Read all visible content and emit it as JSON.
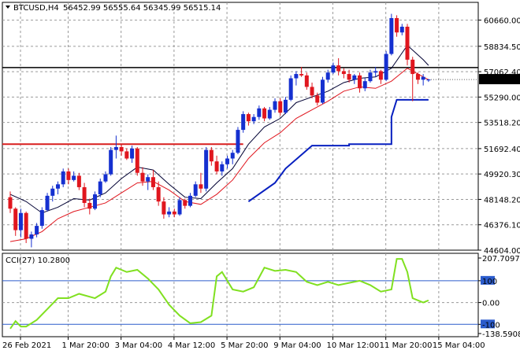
{
  "header": {
    "symbol": "BTCUSD,H4",
    "ohlc": "56452.99 56555.64 56345.99 56515.14"
  },
  "colors": {
    "bull": "#1530d0",
    "bear": "#e0161e",
    "ma_fast": "#000033",
    "ma_slow": "#e0161e",
    "support": "#0820c0",
    "resistance": "#d81e1e",
    "horizontal": "#000000",
    "cci": "#80e020",
    "cci_level": "#2c5ccc",
    "grid": "#9a9a9a",
    "current_price_bg": "#000000",
    "current_price_fg": "#ffffff"
  },
  "chart_data": [
    {
      "type": "candlestick",
      "title": "BTCUSD,H4",
      "y_ticks": [
        "60660.00",
        "58834.50",
        "57062.40",
        "55290.00",
        "53518.20",
        "51692.40",
        "49920.30",
        "48148.20",
        "46376.10",
        "44604.00"
      ],
      "y_tick_values": [
        60660.0,
        58834.5,
        57062.4,
        55290.0,
        53518.2,
        51692.4,
        49920.3,
        48148.2,
        46376.1,
        44604.0
      ],
      "ylim": [
        44604.0,
        61900.0
      ],
      "current_price": "56515.14",
      "current_price_value": 56515.14,
      "horizontal_line": 57350,
      "x_ticks": [
        "26 Feb 2021",
        "1 Mar 20:00",
        "3 Mar 04:00",
        "4 Mar 12:00",
        "5 Mar 20:00",
        "9 Mar 04:00",
        "10 Mar 12:00",
        "11 Mar 20:00",
        "15 Mar 04:00"
      ],
      "x_tick_index": [
        0,
        9,
        19,
        29,
        39,
        49,
        59,
        69,
        79
      ],
      "candles": [
        [
          48300,
          48700,
          47200,
          47500
        ],
        [
          47500,
          47600,
          45600,
          46000
        ],
        [
          46000,
          47500,
          45500,
          47200
        ],
        [
          47200,
          47300,
          45100,
          45400
        ],
        [
          45400,
          45900,
          44800,
          45700
        ],
        [
          45700,
          46500,
          45500,
          46300
        ],
        [
          46300,
          47600,
          46100,
          47400
        ],
        [
          47400,
          48600,
          47300,
          48400
        ],
        [
          48400,
          49100,
          48000,
          48900
        ],
        [
          48900,
          49400,
          48500,
          49200
        ],
        [
          49200,
          50300,
          49000,
          50100
        ],
        [
          50100,
          50300,
          49200,
          49500
        ],
        [
          49500,
          50100,
          49400,
          49800
        ],
        [
          49800,
          50000,
          48800,
          49000
        ],
        [
          49000,
          49300,
          47600,
          47900
        ],
        [
          47900,
          48200,
          47100,
          47500
        ],
        [
          47500,
          48700,
          47400,
          48500
        ],
        [
          48500,
          49600,
          48300,
          49400
        ],
        [
          49400,
          50100,
          49300,
          49900
        ],
        [
          49900,
          51800,
          49800,
          51600
        ],
        [
          51600,
          52600,
          51000,
          51800
        ],
        [
          51800,
          52000,
          51200,
          51500
        ],
        [
          51500,
          51700,
          50900,
          51000
        ],
        [
          51000,
          51900,
          50700,
          51700
        ],
        [
          51700,
          51800,
          49800,
          50000
        ],
        [
          50000,
          50400,
          49100,
          49400
        ],
        [
          49400,
          49900,
          48800,
          49700
        ],
        [
          49700,
          50200,
          48800,
          49000
        ],
        [
          49000,
          49400,
          47700,
          48000
        ],
        [
          48000,
          48300,
          46800,
          47100
        ],
        [
          47100,
          47600,
          46900,
          47300
        ],
        [
          47300,
          47500,
          46900,
          47100
        ],
        [
          47100,
          48300,
          47000,
          48100
        ],
        [
          48100,
          48200,
          47500,
          47700
        ],
        [
          47700,
          48600,
          47600,
          48400
        ],
        [
          48400,
          49400,
          48300,
          49200
        ],
        [
          49200,
          50000,
          48600,
          48900
        ],
        [
          48900,
          51800,
          48700,
          51600
        ],
        [
          51600,
          51800,
          50500,
          50800
        ],
        [
          50800,
          51200,
          49900,
          50100
        ],
        [
          50100,
          50800,
          49800,
          50600
        ],
        [
          50600,
          51200,
          50300,
          51000
        ],
        [
          51000,
          51600,
          50600,
          51400
        ],
        [
          51400,
          53200,
          51300,
          53000
        ],
        [
          53000,
          54300,
          52800,
          54100
        ],
        [
          54100,
          54200,
          53300,
          53600
        ],
        [
          53600,
          54100,
          53400,
          53900
        ],
        [
          53900,
          54700,
          53700,
          54500
        ],
        [
          54500,
          54600,
          53600,
          53800
        ],
        [
          53800,
          54600,
          53700,
          54400
        ],
        [
          54400,
          55200,
          54200,
          55000
        ],
        [
          55000,
          55200,
          54000,
          54200
        ],
        [
          54200,
          55300,
          54100,
          55100
        ],
        [
          55100,
          56800,
          55000,
          56600
        ],
        [
          56600,
          57100,
          56100,
          56900
        ],
        [
          56900,
          57400,
          56700,
          56800
        ],
        [
          56800,
          57000,
          55800,
          56000
        ],
        [
          56000,
          56300,
          55200,
          55400
        ],
        [
          55400,
          55600,
          54700,
          54900
        ],
        [
          54900,
          56700,
          54800,
          56500
        ],
        [
          56500,
          57200,
          56300,
          57000
        ],
        [
          57000,
          57700,
          56900,
          57500
        ],
        [
          57500,
          58000,
          56800,
          57100
        ],
        [
          57100,
          57300,
          56600,
          56900
        ],
        [
          56900,
          57200,
          56300,
          56500
        ],
        [
          56500,
          56900,
          56200,
          56800
        ],
        [
          56800,
          57000,
          55600,
          55900
        ],
        [
          55900,
          56600,
          55700,
          56400
        ],
        [
          56400,
          57200,
          56300,
          57000
        ],
        [
          57000,
          57400,
          56700,
          57100
        ],
        [
          57100,
          57200,
          56200,
          56500
        ],
        [
          56500,
          58500,
          56400,
          58300
        ],
        [
          58300,
          61100,
          58200,
          60800
        ],
        [
          60800,
          61000,
          59500,
          59800
        ],
        [
          59800,
          60400,
          59600,
          60200
        ],
        [
          60200,
          60400,
          57500,
          57900
        ],
        [
          57900,
          58100,
          55000,
          56900
        ],
        [
          56900,
          57000,
          56200,
          56500
        ],
        [
          56500,
          56900,
          56100,
          56700
        ],
        [
          56452.99,
          56555.64,
          56345.99,
          56515.14
        ]
      ],
      "ma_fast": [
        [
          0,
          48500
        ],
        [
          3,
          48000
        ],
        [
          6,
          47200
        ],
        [
          9,
          47600
        ],
        [
          12,
          48200
        ],
        [
          15,
          48100
        ],
        [
          18,
          48600
        ],
        [
          21,
          49600
        ],
        [
          24,
          50400
        ],
        [
          27,
          50200
        ],
        [
          30,
          49200
        ],
        [
          33,
          48300
        ],
        [
          36,
          48200
        ],
        [
          39,
          49300
        ],
        [
          42,
          50300
        ],
        [
          45,
          52000
        ],
        [
          48,
          53200
        ],
        [
          51,
          53800
        ],
        [
          54,
          54900
        ],
        [
          57,
          55300
        ],
        [
          60,
          55700
        ],
        [
          63,
          56300
        ],
        [
          66,
          56600
        ],
        [
          69,
          56700
        ],
        [
          72,
          57300
        ],
        [
          75,
          58900
        ],
        [
          78,
          57900
        ],
        [
          79,
          57500
        ]
      ],
      "ma_slow": [
        [
          0,
          45200
        ],
        [
          3,
          45400
        ],
        [
          6,
          45900
        ],
        [
          9,
          46800
        ],
        [
          12,
          47300
        ],
        [
          15,
          47600
        ],
        [
          18,
          47900
        ],
        [
          21,
          48600
        ],
        [
          24,
          49300
        ],
        [
          27,
          49400
        ],
        [
          30,
          48800
        ],
        [
          33,
          48000
        ],
        [
          36,
          47800
        ],
        [
          39,
          48500
        ],
        [
          42,
          49500
        ],
        [
          45,
          51000
        ],
        [
          48,
          52100
        ],
        [
          51,
          52800
        ],
        [
          54,
          53800
        ],
        [
          57,
          54400
        ],
        [
          60,
          55000
        ],
        [
          63,
          55700
        ],
        [
          66,
          56000
        ],
        [
          69,
          55900
        ],
        [
          72,
          56400
        ],
        [
          75,
          57300
        ],
        [
          78,
          56700
        ],
        [
          79,
          56500
        ]
      ],
      "support_line": [
        [
          45,
          48000
        ],
        [
          50,
          49300
        ],
        [
          52,
          50300
        ],
        [
          57,
          51900
        ],
        [
          64,
          51900
        ],
        [
          64,
          52000
        ],
        [
          72,
          52000
        ],
        [
          72,
          53900
        ],
        [
          73,
          55100
        ],
        [
          79,
          55100
        ]
      ],
      "resistance_line": [
        [
          0,
          52000
        ],
        [
          44,
          52000
        ]
      ]
    },
    {
      "type": "line",
      "title": "CCI(27) 10.2800",
      "y_ticks": [
        "207.7097",
        "100",
        "0.00",
        "-100",
        "-138.5908"
      ],
      "y_tick_values": [
        207.7097,
        100,
        0,
        -100,
        -138.5908
      ],
      "levels": [
        100,
        -100
      ],
      "ylim": [
        -138.5908,
        207.7097
      ],
      "values": [
        [
          0,
          -120
        ],
        [
          1,
          -85
        ],
        [
          2,
          -110
        ],
        [
          3,
          -110
        ],
        [
          5,
          -80
        ],
        [
          7,
          -30
        ],
        [
          9,
          20
        ],
        [
          11,
          20
        ],
        [
          13,
          40
        ],
        [
          16,
          20
        ],
        [
          18,
          50
        ],
        [
          19,
          120
        ],
        [
          20,
          160
        ],
        [
          22,
          140
        ],
        [
          24,
          150
        ],
        [
          26,
          110
        ],
        [
          28,
          60
        ],
        [
          30,
          -10
        ],
        [
          32,
          -60
        ],
        [
          34,
          -95
        ],
        [
          36,
          -90
        ],
        [
          38,
          -60
        ],
        [
          39,
          120
        ],
        [
          40,
          140
        ],
        [
          42,
          60
        ],
        [
          44,
          50
        ],
        [
          46,
          70
        ],
        [
          48,
          160
        ],
        [
          50,
          145
        ],
        [
          52,
          150
        ],
        [
          54,
          140
        ],
        [
          56,
          95
        ],
        [
          58,
          80
        ],
        [
          60,
          95
        ],
        [
          62,
          80
        ],
        [
          64,
          90
        ],
        [
          66,
          100
        ],
        [
          68,
          80
        ],
        [
          70,
          50
        ],
        [
          72,
          60
        ],
        [
          73,
          200
        ],
        [
          74,
          200
        ],
        [
          75,
          140
        ],
        [
          76,
          20
        ],
        [
          77,
          10
        ],
        [
          78,
          0
        ],
        [
          79,
          10
        ]
      ]
    }
  ]
}
